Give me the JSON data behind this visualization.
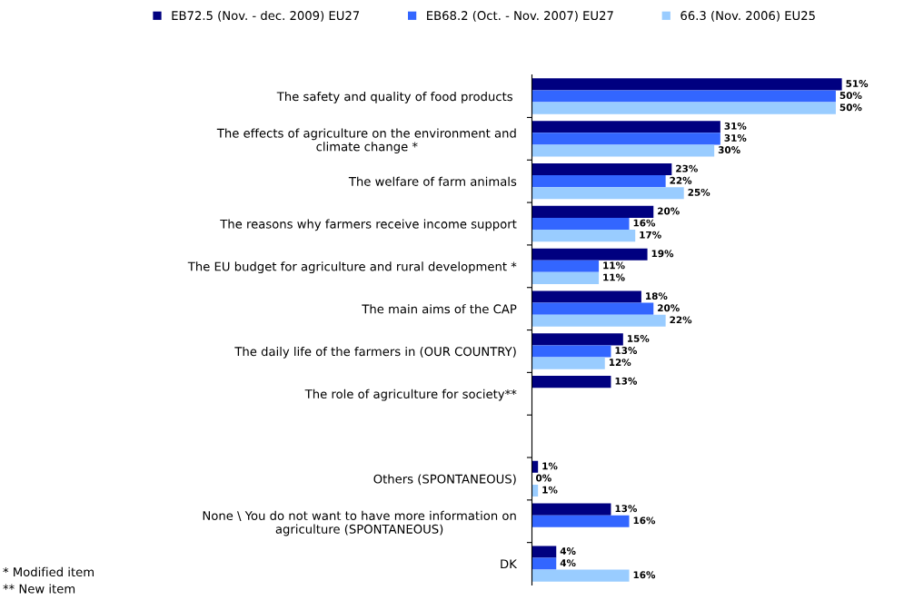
{
  "chart_data": {
    "type": "bar",
    "orientation": "horizontal",
    "legend": "top",
    "grid": false,
    "tick_labels": "y",
    "categories": [
      "The safety and quality of food products ",
      "The effects of agriculture on the environment and\nclimate change *",
      "The welfare of farm animals",
      "The reasons why farmers receive income support",
      "The EU budget for agriculture and rural development *",
      "The main aims of the CAP",
      "The daily life of the farmers in (OUR COUNTRY)",
      "The role of agriculture for society**",
      null,
      "Others (SPONTANEOUS)",
      "None \\ You do not want to have more information on\nagriculture (SPONTANEOUS)",
      "DK"
    ],
    "series": [
      {
        "name": "EB72.5 (Nov. - dec. 2009) EU27",
        "color": "#000080",
        "values": [
          51,
          31,
          23,
          20,
          19,
          18,
          15,
          13,
          null,
          1,
          13,
          4
        ],
        "value_labels": [
          "51%",
          "31%",
          "23%",
          "20%",
          "19%",
          "18%",
          "15%",
          "13%",
          null,
          "1%",
          "13%",
          "4%"
        ]
      },
      {
        "name": "EB68.2 (Oct. - Nov. 2007) EU27",
        "color": "#3366ff",
        "values": [
          50,
          31,
          22,
          16,
          11,
          20,
          13,
          null,
          null,
          0,
          16,
          4
        ],
        "value_labels": [
          "50%",
          "31%",
          "22%",
          "16%",
          "11%",
          "20%",
          "13%",
          null,
          null,
          "0%",
          "16%",
          "4%"
        ]
      },
      {
        "name": "66.3 (Nov. 2006) EU25",
        "color": "#99ccff",
        "values": [
          50,
          30,
          25,
          17,
          11,
          22,
          12,
          null,
          null,
          1,
          null,
          16
        ],
        "value_labels": [
          "50%",
          "30%",
          "25%",
          "17%",
          "11%",
          "22%",
          "12%",
          null,
          null,
          "1%",
          null,
          "16%"
        ]
      }
    ],
    "annotations": [
      "* Modified item",
      "** New item"
    ]
  }
}
